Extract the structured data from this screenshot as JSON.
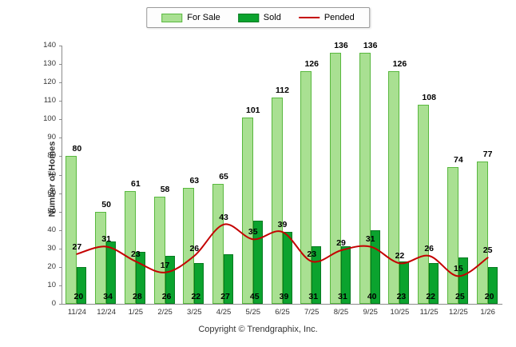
{
  "footer": "Copyright © Trendgraphix, Inc.",
  "chart_data": {
    "type": "bar",
    "title": "",
    "xlabel": "",
    "ylabel": "Number of Homes",
    "ylim": [
      0,
      140
    ],
    "ytick_step": 10,
    "grid": false,
    "legend_position": "top",
    "categories": [
      "11/24",
      "12/24",
      "1/25",
      "2/25",
      "3/25",
      "4/25",
      "5/25",
      "6/25",
      "7/25",
      "8/25",
      "9/25",
      "10/25",
      "11/25",
      "12/25",
      "1/26"
    ],
    "series": [
      {
        "name": "For Sale",
        "type": "bar",
        "color": "#a9e092",
        "border": "#59b83f",
        "values": [
          80,
          50,
          61,
          58,
          63,
          65,
          101,
          112,
          126,
          136,
          136,
          126,
          108,
          74,
          77
        ]
      },
      {
        "name": "Sold",
        "type": "bar",
        "color": "#0ba32e",
        "border": "#077a21",
        "values": [
          20,
          34,
          28,
          26,
          22,
          27,
          45,
          39,
          31,
          31,
          40,
          23,
          22,
          25,
          20
        ]
      },
      {
        "name": "Pended",
        "type": "line",
        "color": "#c40000",
        "values": [
          27,
          31,
          23,
          17,
          26,
          43,
          35,
          39,
          23,
          29,
          31,
          22,
          26,
          15,
          25
        ]
      }
    ]
  }
}
